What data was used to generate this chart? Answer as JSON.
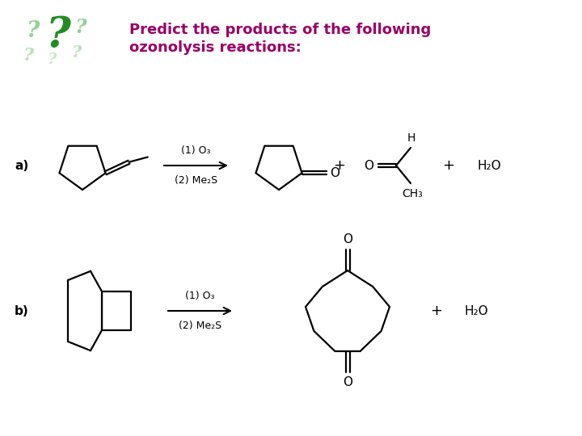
{
  "title_line1": "Predict the products of the following",
  "title_line2": "ozonolysis reactions:",
  "title_color": "#990066",
  "title_fontsize": 13,
  "bg_color": "#ffffff",
  "label_a": "a)",
  "label_b": "b)",
  "label_color": "#000000",
  "reagent_1": "(1) O₃",
  "reagent_2": "(2) Me₂S",
  "plus": "+",
  "h2o": "H₂O",
  "line_color": "#000000",
  "line_width": 1.6
}
